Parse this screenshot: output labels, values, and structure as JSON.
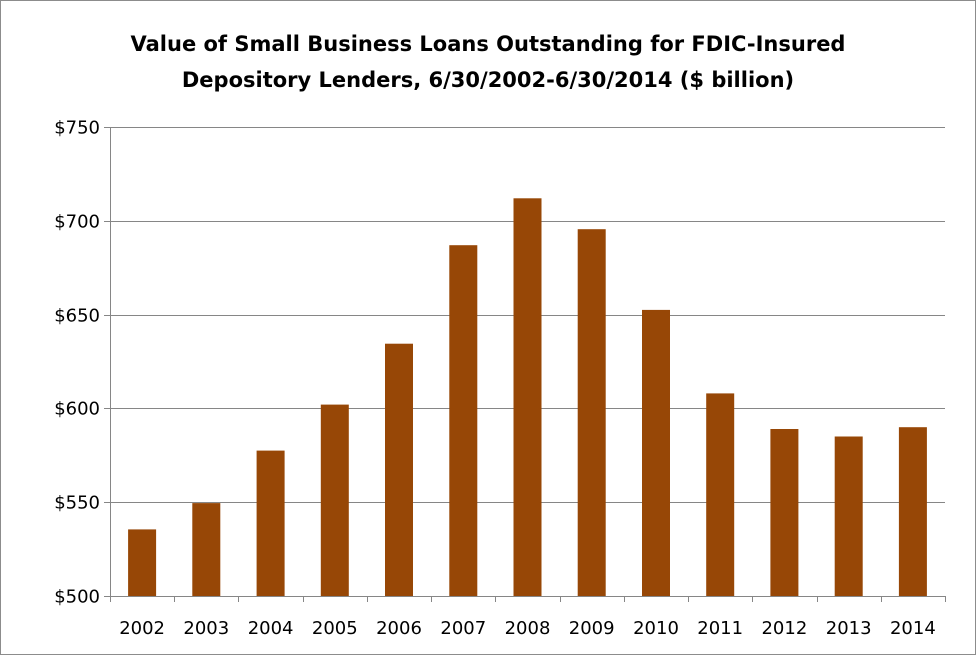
{
  "chart_data": {
    "type": "bar",
    "title": "Value of Small Business Loans Outstanding for FDIC-Insured Depository Lenders, 6/30/2002-6/30/2014 ($ billion)",
    "title_lines": [
      "Value of Small Business Loans Outstanding for FDIC-Insured",
      "Depository Lenders, 6/30/2002-6/30/2014 ($ billion)"
    ],
    "xlabel": "",
    "ylabel": "",
    "categories": [
      "2002",
      "2003",
      "2004",
      "2005",
      "2006",
      "2007",
      "2008",
      "2009",
      "2010",
      "2011",
      "2012",
      "2013",
      "2014"
    ],
    "values": [
      535.5,
      549.5,
      577.5,
      602,
      634.5,
      687,
      712,
      695.5,
      652.5,
      608,
      589,
      585,
      590
    ],
    "ylim": [
      500,
      750
    ],
    "yticks": [
      500,
      550,
      600,
      650,
      700,
      750
    ],
    "ytick_labels": [
      "$500",
      "$550",
      "$600",
      "$650",
      "$700",
      "$750"
    ],
    "grid": true,
    "legend": "none",
    "colors": {
      "bar": "#974706",
      "gridline": "#868686",
      "axis": "#868686",
      "frame": "#8c8c8c"
    }
  }
}
